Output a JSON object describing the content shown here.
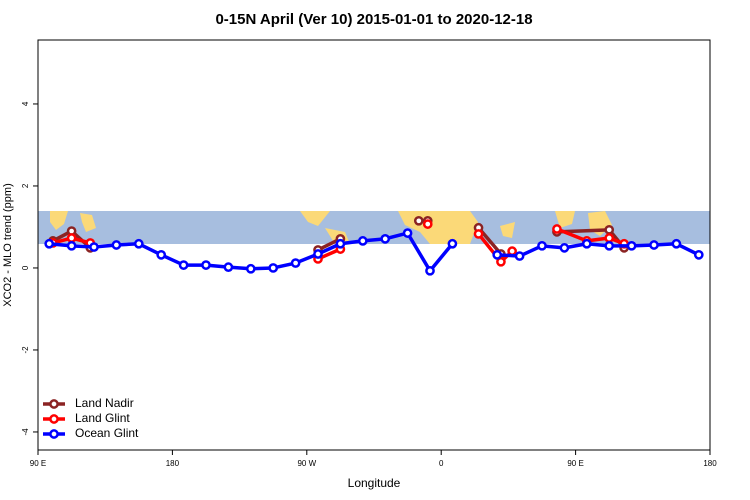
{
  "chart_data": {
    "type": "line",
    "title": "0-15N April (Ver 10)   2015-01-01 to 2020-12-18",
    "xlabel": "Longitude",
    "ylabel": "XCO2 - MLO trend (ppm)",
    "xlim": [
      90,
      540
    ],
    "ylim": [
      -4.44,
      5.56
    ],
    "xticks": [
      {
        "value": 90,
        "label": "90 E"
      },
      {
        "value": 180,
        "label": "180"
      },
      {
        "value": 270,
        "label": "90 W"
      },
      {
        "value": 360,
        "label": "0"
      },
      {
        "value": 450,
        "label": "90 E"
      },
      {
        "value": 540,
        "label": "180"
      }
    ],
    "yticks": [
      -4,
      -2,
      0,
      2,
      4
    ],
    "legend": "bottomleft",
    "series": [
      {
        "name": "Land Nadir",
        "color": "#8b2323",
        "x": [
          100,
          112.5,
          125,
          null,
          277.5,
          292.5,
          null,
          345,
          351,
          null,
          385,
          400,
          null,
          437.5,
          472.5,
          482.5
        ],
        "values": [
          0.66,
          0.9,
          0.49,
          null,
          0.44,
          0.71,
          null,
          1.15,
          1.15,
          null,
          0.98,
          0.34,
          null,
          0.88,
          0.93,
          0.49
        ]
      },
      {
        "name": "Land Glint",
        "color": "#ff0000",
        "x": [
          100,
          112.5,
          125,
          null,
          277.5,
          292.5,
          null,
          351,
          null,
          385,
          400,
          407.5,
          null,
          437.5,
          457.5,
          472.5,
          482.5
        ],
        "values": [
          0.61,
          0.73,
          0.61,
          null,
          0.22,
          0.46,
          null,
          1.07,
          null,
          0.83,
          0.15,
          0.41,
          null,
          0.95,
          0.66,
          0.73,
          0.59
        ]
      },
      {
        "name": "Ocean Glint",
        "color": "#0000ff",
        "x": [
          97.5,
          112.5,
          127.5,
          142.5,
          157.5,
          172.5,
          187.5,
          202.5,
          217.5,
          232.5,
          247.5,
          262.5,
          277.5,
          292.5,
          307.5,
          322.5,
          337.5,
          352.5,
          367.5,
          null,
          397.5,
          412.5,
          427.5,
          442.5,
          457.5,
          472.5,
          487.5,
          502.5,
          517.5,
          532.5
        ],
        "values": [
          0.59,
          0.54,
          0.51,
          0.56,
          0.59,
          0.32,
          0.07,
          0.07,
          0.02,
          -0.02,
          0,
          0.12,
          0.34,
          0.59,
          0.66,
          0.71,
          0.85,
          -0.07,
          0.59,
          null,
          0.32,
          0.29,
          0.54,
          0.49,
          0.59,
          0.54,
          0.54,
          0.56,
          0.59,
          0.32
        ]
      }
    ]
  }
}
